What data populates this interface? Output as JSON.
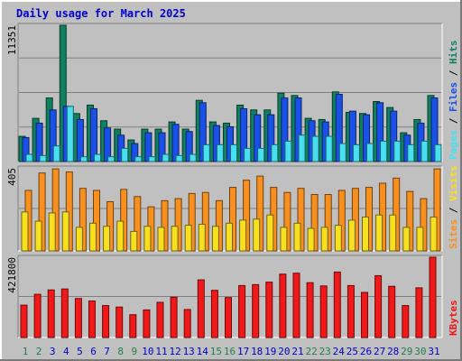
{
  "title": "Daily usage for March 2025",
  "colors": {
    "pages": "#1850e8",
    "files": "#48e0f0",
    "hits": "#108060",
    "visits": "#f8e020",
    "sites": "#f89020",
    "kbytes": "#f01818",
    "weekday_label": "#0000cc",
    "weekend_label": "#208050"
  },
  "chart_data": [
    {
      "type": "bar",
      "title": "Hits / Files / Pages",
      "ylabel_parts": [
        "Pages",
        "Files",
        "Hits"
      ],
      "scale_label": "11351",
      "ylim": [
        0,
        11351
      ],
      "categories": [
        "1",
        "2",
        "3",
        "4",
        "5",
        "6",
        "7",
        "8",
        "9",
        "10",
        "11",
        "12",
        "13",
        "14",
        "15",
        "16",
        "17",
        "18",
        "19",
        "20",
        "21",
        "22",
        "23",
        "24",
        "25",
        "26",
        "27",
        "28",
        "29",
        "30",
        "31"
      ],
      "series": [
        {
          "name": "Hits",
          "values": [
            2100,
            3600,
            5300,
            11351,
            4000,
            4700,
            3400,
            2700,
            1800,
            2700,
            2700,
            3300,
            2700,
            5100,
            3300,
            3200,
            4700,
            4300,
            4300,
            5700,
            5500,
            3600,
            3500,
            5800,
            4100,
            4000,
            5000,
            4500,
            2400,
            3500,
            5500
          ]
        },
        {
          "name": "Pages",
          "values": [
            2000,
            3200,
            4300,
            4600,
            3500,
            4400,
            2800,
            2200,
            1500,
            2400,
            2400,
            3100,
            2500,
            4900,
            3000,
            2900,
            4400,
            3900,
            3900,
            5300,
            5300,
            3400,
            3300,
            5600,
            4200,
            3900,
            4900,
            4200,
            2200,
            3200,
            5300
          ]
        },
        {
          "name": "Files",
          "values": [
            600,
            500,
            1300,
            4600,
            400,
            600,
            400,
            1100,
            400,
            400,
            600,
            500,
            600,
            1400,
            1400,
            1400,
            1100,
            1100,
            1400,
            1700,
            2200,
            2100,
            2100,
            1500,
            1400,
            1500,
            1700,
            1700,
            1400,
            1700,
            1400
          ]
        }
      ]
    },
    {
      "type": "bar",
      "title": "Visits / Sites",
      "ylabel_parts": [
        "Sites",
        "Visits"
      ],
      "scale_label": "405",
      "ylim": [
        0,
        405
      ],
      "categories": [
        "1",
        "2",
        "3",
        "4",
        "5",
        "6",
        "7",
        "8",
        "9",
        "10",
        "11",
        "12",
        "13",
        "14",
        "15",
        "16",
        "17",
        "18",
        "19",
        "20",
        "21",
        "22",
        "23",
        "24",
        "25",
        "26",
        "27",
        "28",
        "29",
        "30",
        "31"
      ],
      "series": [
        {
          "name": "Sites",
          "values": [
            295,
            380,
            400,
            385,
            305,
            295,
            240,
            300,
            265,
            215,
            245,
            255,
            280,
            285,
            245,
            310,
            345,
            365,
            310,
            285,
            305,
            275,
            275,
            295,
            305,
            310,
            330,
            355,
            290,
            255,
            400
          ]
        },
        {
          "name": "Visits",
          "values": [
            190,
            145,
            185,
            190,
            115,
            135,
            120,
            145,
            95,
            120,
            115,
            120,
            125,
            130,
            120,
            135,
            150,
            155,
            175,
            115,
            135,
            110,
            115,
            125,
            150,
            165,
            175,
            175,
            115,
            115,
            165
          ]
        }
      ]
    },
    {
      "type": "bar",
      "title": "KBytes",
      "ylabel_parts": [
        "KBytes"
      ],
      "scale_label": "421800",
      "ylim": [
        0,
        421800
      ],
      "categories": [
        "1",
        "2",
        "3",
        "4",
        "5",
        "6",
        "7",
        "8",
        "9",
        "10",
        "11",
        "12",
        "13",
        "14",
        "15",
        "16",
        "17",
        "18",
        "19",
        "20",
        "21",
        "22",
        "23",
        "24",
        "25",
        "26",
        "27",
        "28",
        "29",
        "30",
        "31"
      ],
      "series": [
        {
          "name": "KBytes",
          "values": [
            170000,
            227000,
            250000,
            255000,
            205000,
            192000,
            168000,
            160000,
            120000,
            145000,
            185000,
            212000,
            147000,
            303000,
            248000,
            210000,
            273000,
            278000,
            291000,
            333000,
            338000,
            288000,
            271000,
            344000,
            273000,
            237000,
            325000,
            269000,
            168000,
            261000,
            421800
          ]
        }
      ]
    }
  ],
  "day_labels": [
    "1",
    "2",
    "3",
    "4",
    "5",
    "6",
    "7",
    "8",
    "9",
    "10",
    "11",
    "12",
    "13",
    "14",
    "15",
    "16",
    "17",
    "18",
    "19",
    "20",
    "21",
    "22",
    "23",
    "24",
    "25",
    "26",
    "27",
    "28",
    "29",
    "30",
    "31"
  ],
  "weekend_days": [
    "1",
    "2",
    "8",
    "9",
    "15",
    "16",
    "22",
    "23",
    "29",
    "30"
  ]
}
